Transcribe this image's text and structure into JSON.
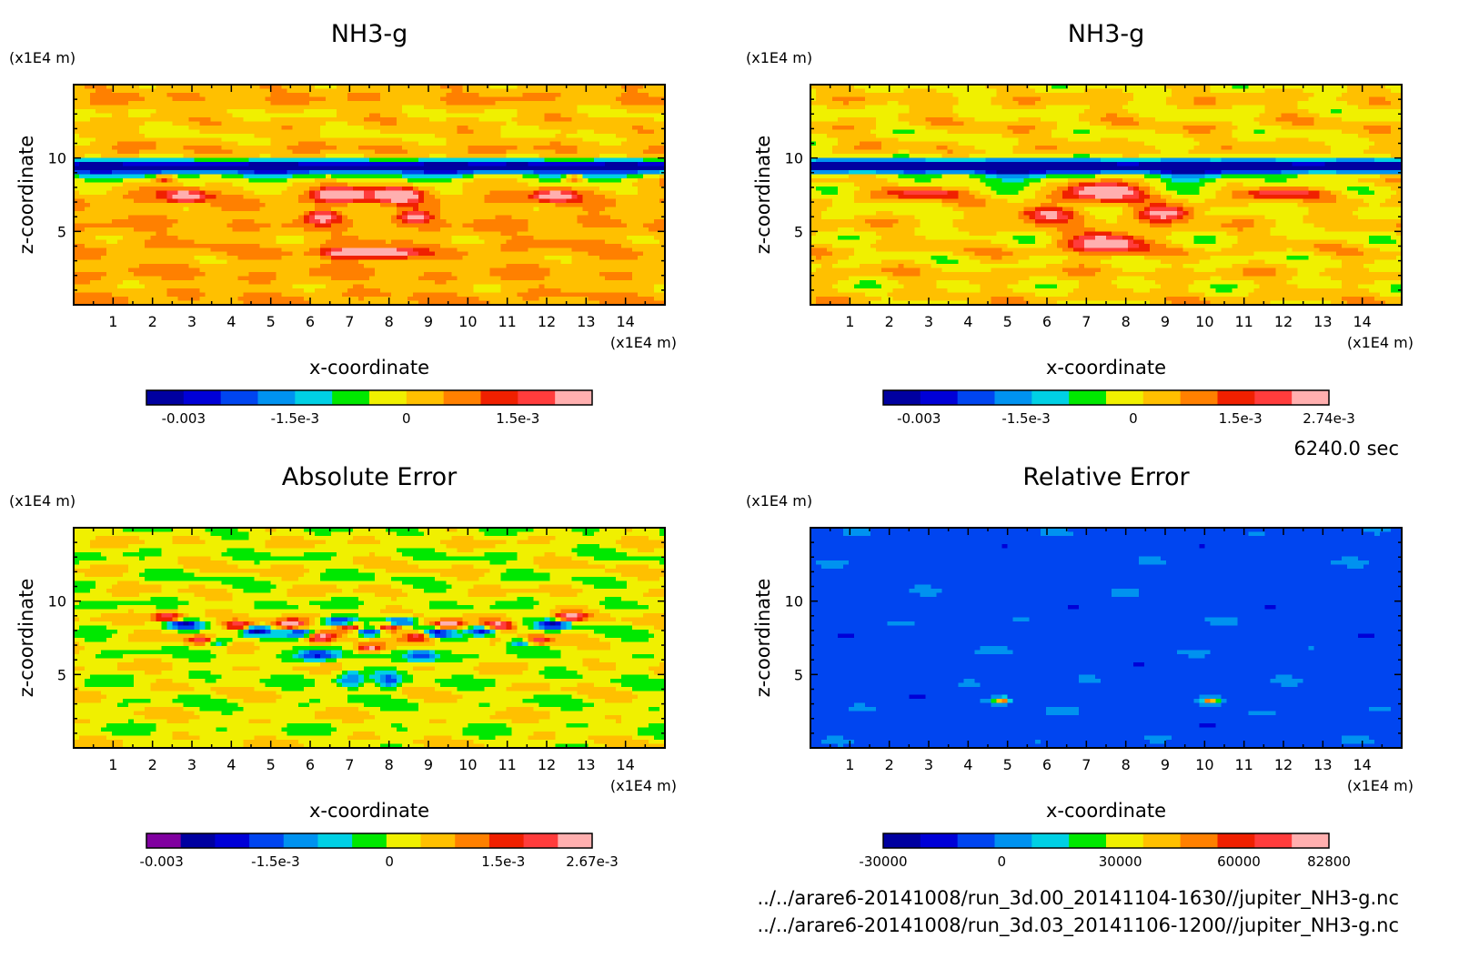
{
  "figure": {
    "time_label": "6240.0 sec",
    "files": [
      "../../arare6-20141008/run_3d.00_20141104-1630//jupiter_NH3-g.nc",
      "../../arare6-20141008/run_3d.03_20141106-1200//jupiter_NH3-g.nc"
    ]
  },
  "colors": {
    "ramp12": [
      "#0000a0",
      "#0000d7",
      "#0045f0",
      "#0092f0",
      "#00d0e4",
      "#00e800",
      "#f0f000",
      "#ffc000",
      "#ff8000",
      "#f02000",
      "#ff3c3c",
      "#ffafaf"
    ],
    "ramp13": [
      "#8000a0",
      "#0000a0",
      "#0000d7",
      "#0045f0",
      "#0092f0",
      "#00d0e4",
      "#00e800",
      "#f0f000",
      "#ffc000",
      "#ff8000",
      "#f02000",
      "#ff3c3c",
      "#ffafaf"
    ]
  },
  "chart_data": [
    {
      "type": "heatmap",
      "title": "NH3-g",
      "xlabel": "x-coordinate",
      "ylabel": "z-coordinate",
      "x_unit": "(x1E4 m)",
      "y_unit": "(x1E4 m)",
      "xlim": [
        0,
        15
      ],
      "ylim": [
        0,
        15
      ],
      "xticks": [
        "1",
        "2",
        "3",
        "4",
        "5",
        "6",
        "7",
        "8",
        "9",
        "10",
        "11",
        "12",
        "13",
        "14"
      ],
      "yticks": [
        "5",
        "10"
      ],
      "colorbar": {
        "min": -0.0035,
        "max": 0.0025,
        "levels": 12,
        "labels": [
          [
            "-0.003",
            -0.003
          ],
          [
            "-1.5e-3",
            -0.0015
          ],
          [
            "0",
            0
          ],
          [
            "1.5e-3",
            0.0015
          ]
        ]
      }
    },
    {
      "type": "heatmap",
      "title": "NH3-g",
      "xlabel": "x-coordinate",
      "ylabel": "z-coordinate",
      "x_unit": "(x1E4 m)",
      "y_unit": "(x1E4 m)",
      "xlim": [
        0,
        15
      ],
      "ylim": [
        0,
        15
      ],
      "xticks": [
        "1",
        "2",
        "3",
        "4",
        "5",
        "6",
        "7",
        "8",
        "9",
        "10",
        "11",
        "12",
        "13",
        "14"
      ],
      "yticks": [
        "5",
        "10"
      ],
      "colorbar": {
        "min": -0.0035,
        "max": 0.00274,
        "levels": 12,
        "labels": [
          [
            "-0.003",
            -0.003
          ],
          [
            "-1.5e-3",
            -0.0015
          ],
          [
            "0",
            0
          ],
          [
            "1.5e-3",
            0.0015
          ],
          [
            "2.74e-3",
            0.00274
          ]
        ]
      }
    },
    {
      "type": "heatmap",
      "title": "Absolute Error",
      "xlabel": "x-coordinate",
      "ylabel": "z-coordinate",
      "x_unit": "(x1E4 m)",
      "y_unit": "(x1E4 m)",
      "xlim": [
        0,
        15
      ],
      "ylim": [
        0,
        15
      ],
      "xticks": [
        "1",
        "2",
        "3",
        "4",
        "5",
        "6",
        "7",
        "8",
        "9",
        "10",
        "11",
        "12",
        "13",
        "14"
      ],
      "yticks": [
        "5",
        "10"
      ],
      "colorbar": {
        "min": -0.0032,
        "max": 0.00267,
        "levels": 13,
        "labels": [
          [
            "-0.003",
            -0.003
          ],
          [
            "-1.5e-3",
            -0.0015
          ],
          [
            "0",
            0
          ],
          [
            "1.5e-3",
            0.0015
          ],
          [
            "2.67e-3",
            0.00267
          ]
        ]
      }
    },
    {
      "type": "heatmap",
      "title": "Relative Error",
      "xlabel": "x-coordinate",
      "ylabel": "z-coordinate",
      "x_unit": "(x1E4 m)",
      "y_unit": "(x1E4 m)",
      "xlim": [
        0,
        15
      ],
      "ylim": [
        0,
        15
      ],
      "xticks": [
        "1",
        "2",
        "3",
        "4",
        "5",
        "6",
        "7",
        "8",
        "9",
        "10",
        "11",
        "12",
        "13",
        "14"
      ],
      "yticks": [
        "5",
        "10"
      ],
      "colorbar": {
        "min": -30000,
        "max": 82800,
        "levels": 12,
        "labels": [
          [
            "-30000",
            -30000
          ],
          [
            "0",
            0
          ],
          [
            "30000",
            30000
          ],
          [
            "60000",
            60000
          ],
          [
            "82800",
            82800
          ]
        ]
      }
    }
  ]
}
